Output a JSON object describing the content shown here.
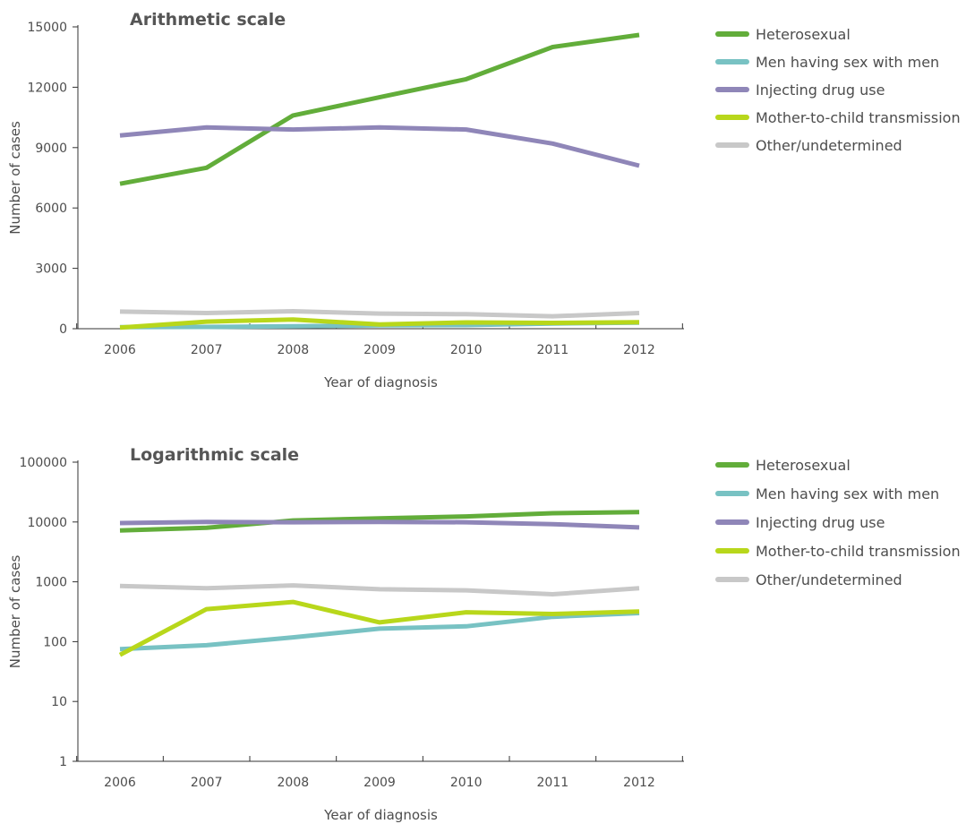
{
  "chart_data": [
    {
      "type": "line",
      "title": "Arithmetic scale",
      "xlabel": "Year of diagnosis",
      "ylabel": "Number of cases",
      "scale": "linear",
      "ylim": [
        0,
        15000
      ],
      "yticks": [
        "0",
        "3000",
        "6000",
        "9000",
        "12000",
        "15000"
      ],
      "ytick_values": [
        0,
        3000,
        6000,
        9000,
        12000,
        15000
      ],
      "grid": false,
      "legend_position": "right",
      "categories": [
        "2006",
        "2007",
        "2008",
        "2009",
        "2010",
        "2011",
        "2012"
      ],
      "series": [
        {
          "name": "Heterosexual",
          "color": "#62ad3a",
          "values": [
            7200,
            8000,
            10600,
            11500,
            12400,
            14000,
            14600
          ]
        },
        {
          "name": "Men having sex with men",
          "color": "#78c2c3",
          "values": [
            75,
            87,
            118,
            165,
            180,
            260,
            300
          ]
        },
        {
          "name": "Injecting drug use",
          "color": "#8f86b8",
          "values": [
            9600,
            10000,
            9900,
            10000,
            9900,
            9200,
            8100
          ]
        },
        {
          "name": "Mother-to-child transmission",
          "color": "#b8d71b",
          "values": [
            60,
            350,
            460,
            210,
            310,
            290,
            320
          ]
        },
        {
          "name": "Other/undetermined",
          "color": "#c8c8c8",
          "values": [
            850,
            780,
            870,
            750,
            720,
            620,
            780
          ]
        }
      ]
    },
    {
      "type": "line",
      "title": "Logarithmic scale",
      "xlabel": "Year of diagnosis",
      "ylabel": "Number of cases",
      "scale": "log",
      "ylim": [
        1,
        100000
      ],
      "yticks": [
        "1",
        "10",
        "100",
        "1000",
        "10000",
        "100000"
      ],
      "ytick_values": [
        1,
        10,
        100,
        1000,
        10000,
        100000
      ],
      "grid": false,
      "legend_position": "right",
      "categories": [
        "2006",
        "2007",
        "2008",
        "2009",
        "2010",
        "2011",
        "2012"
      ],
      "series": [
        {
          "name": "Heterosexual",
          "color": "#62ad3a",
          "values": [
            7200,
            8000,
            10600,
            11500,
            12400,
            14000,
            14600
          ]
        },
        {
          "name": "Men having sex with men",
          "color": "#78c2c3",
          "values": [
            75,
            87,
            118,
            165,
            180,
            260,
            300
          ]
        },
        {
          "name": "Injecting drug use",
          "color": "#8f86b8",
          "values": [
            9600,
            10000,
            9900,
            10000,
            9900,
            9200,
            8100
          ]
        },
        {
          "name": "Mother-to-child transmission",
          "color": "#b8d71b",
          "values": [
            60,
            350,
            460,
            210,
            310,
            290,
            320
          ]
        },
        {
          "name": "Other/undetermined",
          "color": "#c8c8c8",
          "values": [
            850,
            780,
            870,
            750,
            720,
            620,
            780
          ]
        }
      ]
    }
  ]
}
